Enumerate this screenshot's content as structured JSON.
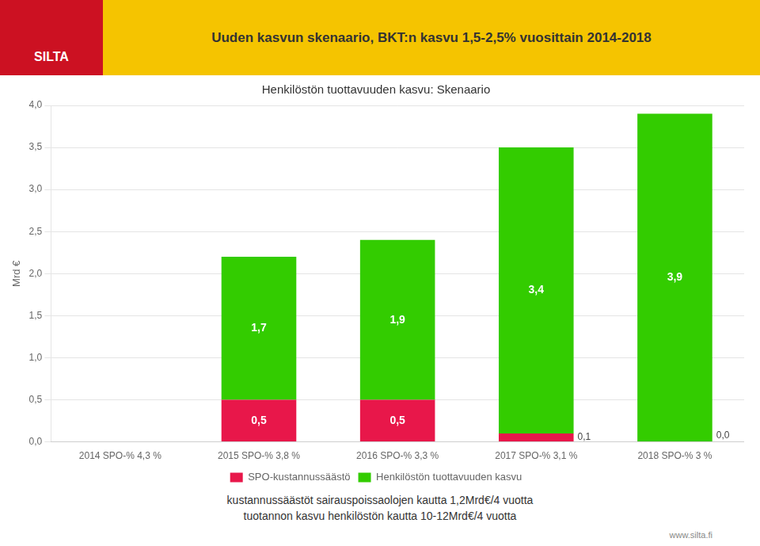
{
  "chart_data": {
    "type": "bar",
    "title": "Henkilöstön tuottavuuden kasvu: Skenaario",
    "ylabel": "Mrd €",
    "annotations": [
      "Uuden kasvun skenaario, BKT:n kasvu 1,5-2,5% vuosittain 2014-2018",
      "SILTA",
      "kustannussäästöt sairauspoissaolojen kautta 1,2Mrd€/4 vuotta",
      "tuotannon kasvu henkilöstön kautta  10-12Mrd€/4 vuotta",
      "www.silta.fi"
    ],
    "categories": [
      "2014 SPO-% 4,3 %",
      "2015 SPO-% 3,8 %",
      "2016 SPO-% 3,3 %",
      "2017 SPO-% 3,1 %",
      "2018 SPO-% 3 %"
    ],
    "series": [
      {
        "name": "SPO-kustannussäästö",
        "color": "#e8174a",
        "values": [
          0.0,
          0.5,
          0.5,
          0.1,
          0.0
        ],
        "value_labels": [
          null,
          "0,5",
          "0,5",
          "0,1",
          "0,0"
        ]
      },
      {
        "name": "Henkilöstön tuottavuuden kasvu",
        "color": "#33cc00",
        "values": [
          0.0,
          1.7,
          1.9,
          3.4,
          3.9
        ],
        "value_labels": [
          null,
          "1,7",
          "1,9",
          "3,4",
          "3,9"
        ]
      }
    ],
    "stacked": true,
    "data_labels": true,
    "ylim": [
      0,
      4.0
    ],
    "yticks": [
      {
        "value": 0.0,
        "label": "0,0"
      },
      {
        "value": 0.5,
        "label": "0,5"
      },
      {
        "value": 1.0,
        "label": "1,0"
      },
      {
        "value": 1.5,
        "label": "1,5"
      },
      {
        "value": 2.0,
        "label": "2,0"
      },
      {
        "value": 2.5,
        "label": "2,5"
      },
      {
        "value": 3.0,
        "label": "3,0"
      },
      {
        "value": 3.5,
        "label": "3,5"
      },
      {
        "value": 4.0,
        "label": "4,0"
      }
    ],
    "grid": "y",
    "legend": "bottom"
  }
}
